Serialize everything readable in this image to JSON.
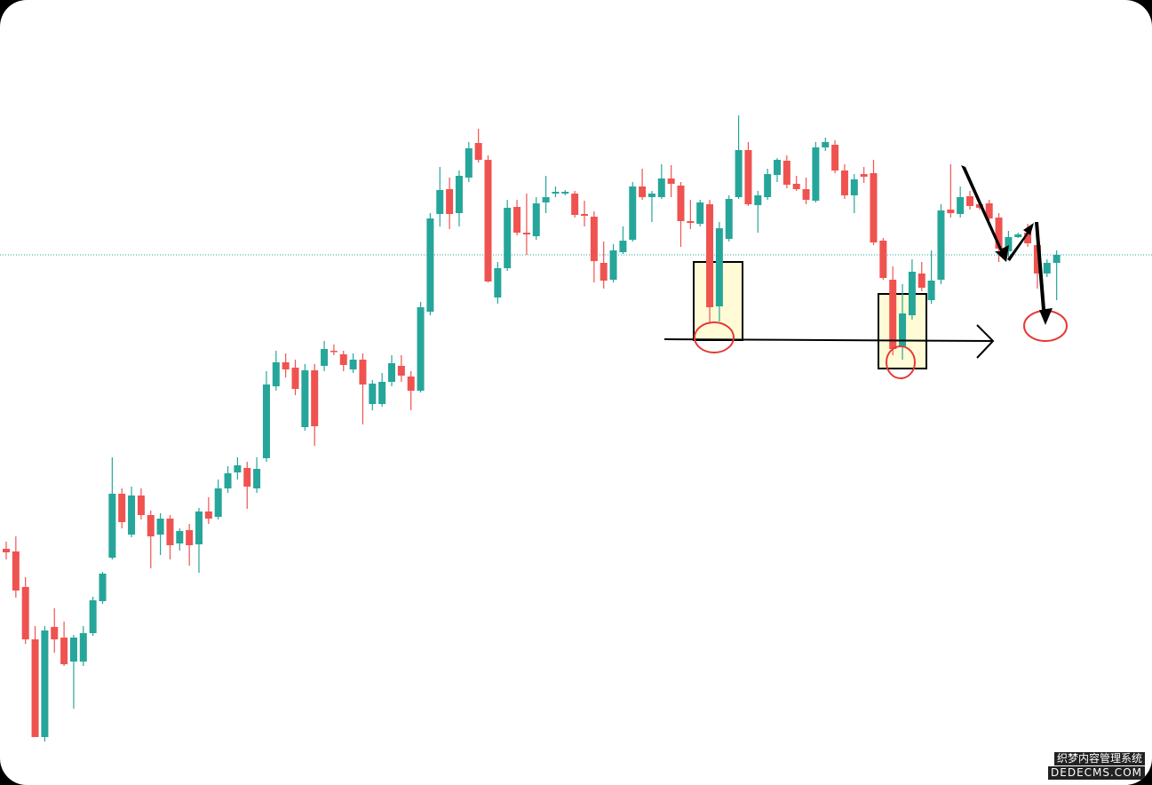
{
  "chart_data": {
    "type": "candlestick",
    "up_color": "#26a69a",
    "down_color": "#ef5350",
    "ylim": [
      0,
      884
    ],
    "open": [
      266,
      263,
      223,
      164,
      54,
      178,
      166,
      139,
      139,
      171,
      207,
      256,
      328,
      282,
      326,
      304,
      282,
      300,
      272,
      287,
      271,
      308,
      302,
      334,
      352,
      357,
      334,
      368,
      449,
      476,
      470,
      403,
      467,
      472,
      489,
      485,
      468,
      479,
      429,
      429,
      454,
      472,
      460,
      444,
      533,
      643,
      671,
      644,
      684,
      723,
      704,
      549,
      582,
      651,
      622,
      618,
      656,
      666,
      666,
      666,
      643,
      640,
      588,
      569,
      600,
      614,
      674,
      662,
      662,
      683,
      675,
      635,
      632,
      654,
      539,
      615,
      662,
      715,
      653,
      662,
      687,
      703,
      677,
      671,
      658,
      718,
      721,
      692,
      664,
      688,
      689,
      613,
      569,
      494,
      529,
      576,
      546,
      569,
      648,
      643,
      663,
      654,
      655,
      639,
      601,
      617,
      622,
      608,
      576,
      588
    ],
    "high": [
      274,
      280,
      234,
      179,
      179,
      199,
      184,
      169,
      179,
      212,
      240,
      369,
      334,
      336,
      334,
      309,
      306,
      304,
      289,
      294,
      312,
      324,
      344,
      359,
      369,
      364,
      369,
      466,
      489,
      486,
      479,
      474,
      474,
      500,
      496,
      489,
      486,
      486,
      456,
      464,
      484,
      484,
      466,
      544,
      644,
      696,
      684,
      692,
      724,
      739,
      709,
      589,
      659,
      659,
      666,
      662,
      686,
      674,
      670,
      669,
      658,
      646,
      612,
      609,
      629,
      679,
      694,
      669,
      699,
      698,
      679,
      659,
      659,
      659,
      634,
      664,
      754,
      724,
      669,
      694,
      706,
      709,
      686,
      684,
      724,
      729,
      726,
      699,
      688,
      696,
      704,
      616,
      584,
      564,
      592,
      589,
      602,
      654,
      699,
      674,
      669,
      659,
      659,
      644,
      624,
      622,
      632,
      614,
      592,
      602
    ],
    "low": [
      254,
      211,
      159,
      54,
      49,
      149,
      134,
      86,
      134,
      168,
      204,
      254,
      289,
      279,
      299,
      244,
      259,
      254,
      264,
      247,
      239,
      294,
      299,
      329,
      344,
      311,
      329,
      364,
      444,
      459,
      439,
      399,
      382,
      466,
      484,
      466,
      464,
      406,
      422,
      426,
      449,
      454,
      422,
      442,
      529,
      629,
      626,
      629,
      679,
      701,
      566,
      542,
      579,
      619,
      597,
      614,
      644,
      662,
      664,
      639,
      629,
      566,
      559,
      566,
      598,
      612,
      659,
      634,
      660,
      662,
      606,
      626,
      629,
      519,
      522,
      612,
      660,
      652,
      622,
      659,
      679,
      672,
      669,
      654,
      656,
      714,
      689,
      660,
      644,
      678,
      608,
      569,
      484,
      479,
      524,
      556,
      542,
      564,
      639,
      639,
      648,
      648,
      636,
      589,
      594,
      616,
      606,
      559,
      572,
      546
    ],
    "close": [
      262,
      219,
      164,
      54,
      174,
      164,
      136,
      166,
      171,
      208,
      238,
      328,
      296,
      326,
      304,
      280,
      300,
      270,
      286,
      270,
      308,
      300,
      334,
      351,
      360,
      336,
      356,
      451,
      476,
      468,
      446,
      467,
      404,
      491,
      488,
      473,
      479,
      451,
      452,
      454,
      475,
      461,
      444,
      538,
      638,
      670,
      643,
      686,
      717,
      704,
      567,
      582,
      650,
      622,
      620,
      655,
      662,
      668,
      668,
      642,
      641,
      590,
      568,
      602,
      613,
      674,
      662,
      666,
      683,
      677,
      635,
      633,
      656,
      538,
      627,
      660,
      715,
      654,
      664,
      688,
      704,
      676,
      671,
      659,
      718,
      724,
      692,
      664,
      682,
      685,
      611,
      571,
      491,
      531,
      578,
      560,
      568,
      647,
      644,
      662,
      652,
      650,
      638,
      604,
      617,
      620,
      610,
      576,
      588,
      597
    ]
  },
  "watermark": {
    "line1": "织梦内容管理系统",
    "line2": "DEDECMS.COM"
  }
}
